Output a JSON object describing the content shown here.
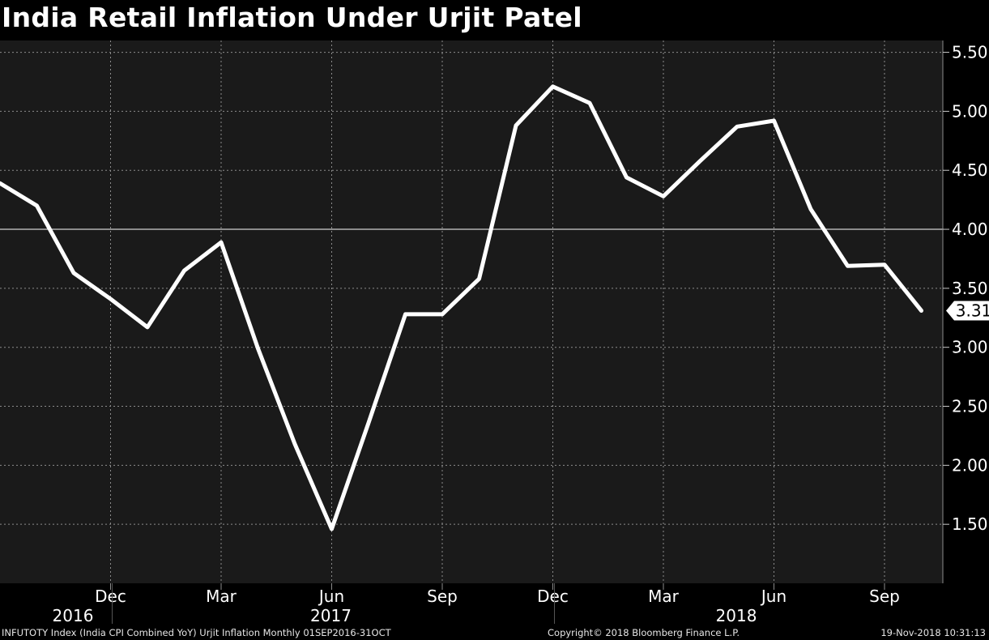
{
  "title": "India Retail Inflation Under Urjit Patel",
  "footer": {
    "left": "INFUTOTY Index (India CPI Combined YoY) Urjit Inflation  Monthly 01SEP2016-31OCT",
    "center": "Copyright© 2018 Bloomberg Finance L.P.",
    "right": "19-Nov-2018 10:31:13"
  },
  "colors": {
    "background": "#000000",
    "plot_background": "#1a1a1a",
    "line": "#ffffff",
    "grid": "#8c8c8c",
    "reference_line": "#ffffff"
  },
  "chart_data": {
    "type": "line",
    "title": "India Retail Inflation Under Urjit Patel",
    "xlabel": "",
    "ylabel": "",
    "x": [
      "2016-09",
      "2016-10",
      "2016-11",
      "2016-12",
      "2017-01",
      "2017-02",
      "2017-03",
      "2017-04",
      "2017-05",
      "2017-06",
      "2017-07",
      "2017-08",
      "2017-09",
      "2017-10",
      "2017-11",
      "2017-12",
      "2018-01",
      "2018-02",
      "2018-03",
      "2018-04",
      "2018-05",
      "2018-06",
      "2018-07",
      "2018-08",
      "2018-09",
      "2018-10"
    ],
    "series": [
      {
        "values": [
          4.39,
          4.2,
          3.63,
          3.41,
          3.17,
          3.65,
          3.89,
          2.99,
          2.18,
          1.46,
          2.36,
          3.28,
          3.28,
          3.58,
          4.88,
          5.21,
          5.07,
          4.44,
          4.28,
          4.58,
          4.87,
          4.92,
          4.17,
          3.69,
          3.7,
          3.31
        ]
      }
    ],
    "ylim": [
      1.0,
      5.6
    ],
    "yticks": [
      "1.50",
      "2.00",
      "2.50",
      "3.00",
      "3.50",
      "4.00",
      "4.50",
      "5.00",
      "5.50"
    ],
    "x_tick_labels": [
      {
        "label": "Dec",
        "x": "2016-12"
      },
      {
        "label": "Mar",
        "x": "2017-03"
      },
      {
        "label": "Jun",
        "x": "2017-06"
      },
      {
        "label": "Sep",
        "x": "2017-09"
      },
      {
        "label": "Dec",
        "x": "2017-12"
      },
      {
        "label": "Mar",
        "x": "2018-03"
      },
      {
        "label": "Jun",
        "x": "2018-06"
      },
      {
        "label": "Sep",
        "x": "2018-09"
      }
    ],
    "year_labels": [
      {
        "label": "2016",
        "x": "2016-11"
      },
      {
        "label": "2017",
        "x": "2017-06"
      },
      {
        "label": "2018",
        "x": "2018-05"
      }
    ],
    "reference_line": 4.0,
    "last_value_label": "3.31",
    "grid": true,
    "y_axis_side": "right"
  }
}
